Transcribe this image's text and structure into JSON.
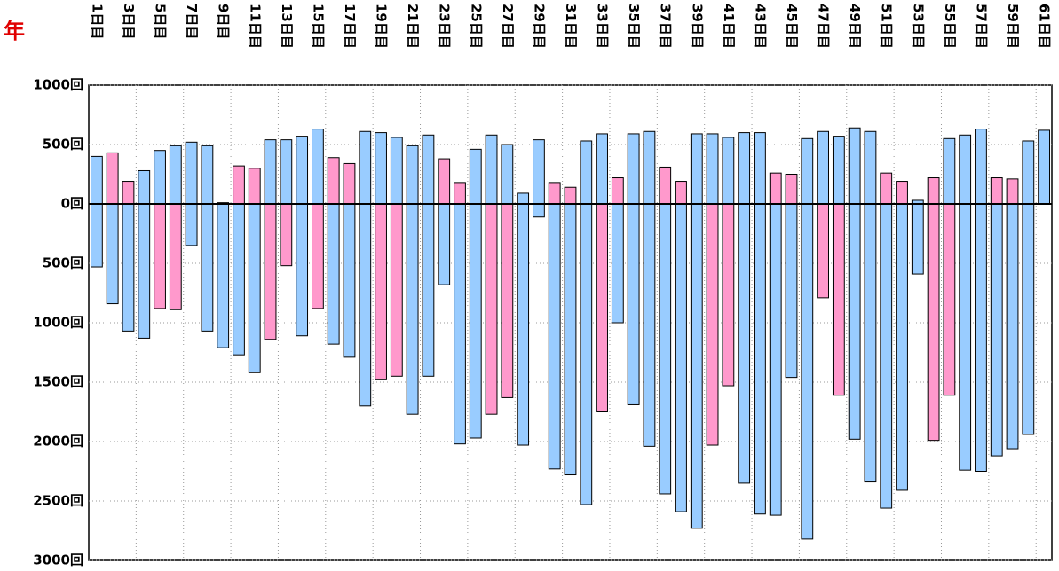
{
  "chart_data": {
    "type": "floating-bar",
    "annotation": "年",
    "categories": [
      "1日目",
      null,
      "3日目",
      null,
      "5日目",
      null,
      "7日目",
      null,
      "9日目",
      null,
      "11日目",
      null,
      "13日目",
      null,
      "15日目",
      null,
      "17日目",
      null,
      "19日目",
      null,
      "21日目",
      null,
      "23日目",
      null,
      "25日目",
      null,
      "27日目",
      null,
      "29日目",
      null,
      "31日目",
      null,
      "33日目",
      null,
      "35日目",
      null,
      "37日目",
      null,
      "39日目",
      null,
      "41日目",
      null,
      "43日目",
      null,
      "45日目",
      null,
      "47日目",
      null,
      "49日目",
      null,
      "51日目",
      null,
      "53日目",
      null,
      "55日目",
      null,
      "57日目",
      null,
      "59日目",
      null,
      "61日目"
    ],
    "highs": [
      400,
      430,
      190,
      280,
      450,
      490,
      520,
      490,
      10,
      320,
      300,
      540,
      540,
      570,
      630,
      390,
      340,
      610,
      600,
      560,
      490,
      580,
      380,
      180,
      460,
      580,
      500,
      90,
      540,
      180,
      140,
      530,
      590,
      220,
      590,
      610,
      310,
      190,
      590,
      590,
      560,
      600,
      600,
      260,
      250,
      550,
      610,
      570,
      640,
      610,
      260,
      190,
      30,
      220,
      550,
      580,
      630,
      220,
      210,
      530,
      620
    ],
    "high_colors": [
      "#99ccff",
      "#ff99cc",
      "#ff99cc",
      "#99ccff",
      "#99ccff",
      "#99ccff",
      "#99ccff",
      "#99ccff",
      "#99ccff",
      "#ff99cc",
      "#ff99cc",
      "#99ccff",
      "#99ccff",
      "#99ccff",
      "#99ccff",
      "#ff99cc",
      "#ff99cc",
      "#99ccff",
      "#99ccff",
      "#99ccff",
      "#99ccff",
      "#99ccff",
      "#ff99cc",
      "#ff99cc",
      "#99ccff",
      "#99ccff",
      "#99ccff",
      "#99ccff",
      "#99ccff",
      "#ff99cc",
      "#ff99cc",
      "#99ccff",
      "#99ccff",
      "#ff99cc",
      "#99ccff",
      "#99ccff",
      "#ff99cc",
      "#ff99cc",
      "#99ccff",
      "#99ccff",
      "#99ccff",
      "#99ccff",
      "#99ccff",
      "#ff99cc",
      "#ff99cc",
      "#99ccff",
      "#99ccff",
      "#99ccff",
      "#99ccff",
      "#99ccff",
      "#ff99cc",
      "#ff99cc",
      "#99ccff",
      "#ff99cc",
      "#99ccff",
      "#99ccff",
      "#99ccff",
      "#ff99cc",
      "#ff99cc",
      "#99ccff",
      "#99ccff"
    ],
    "lows": [
      -530,
      -840,
      -1070,
      -1130,
      -880,
      -890,
      -350,
      -1070,
      -1210,
      -1270,
      -1420,
      -1140,
      -520,
      -1110,
      -880,
      -1180,
      -1290,
      -1700,
      -1480,
      -1450,
      -1770,
      -1450,
      -680,
      -2020,
      -1970,
      -1770,
      -1630,
      -2030,
      -110,
      -2230,
      -2280,
      -2530,
      -1750,
      -1000,
      -1690,
      -2040,
      -2440,
      -2590,
      -2730,
      -2030,
      -1530,
      -2350,
      -2610,
      -2620,
      -1460,
      -2820,
      -790,
      -1610,
      -1980,
      -2340,
      -2560,
      -2410,
      -590,
      -1990,
      -1610,
      -2240,
      -2250,
      -2120,
      -2060,
      -1940,
      0
    ],
    "low_colors": [
      "#99ccff",
      "#99ccff",
      "#99ccff",
      "#99ccff",
      "#ff99cc",
      "#ff99cc",
      "#99ccff",
      "#99ccff",
      "#99ccff",
      "#99ccff",
      "#99ccff",
      "#ff99cc",
      "#ff99cc",
      "#99ccff",
      "#ff99cc",
      "#99ccff",
      "#99ccff",
      "#99ccff",
      "#ff99cc",
      "#ff99cc",
      "#99ccff",
      "#99ccff",
      "#99ccff",
      "#99ccff",
      "#99ccff",
      "#ff99cc",
      "#ff99cc",
      "#99ccff",
      "#99ccff",
      "#99ccff",
      "#99ccff",
      "#99ccff",
      "#ff99cc",
      "#99ccff",
      "#99ccff",
      "#99ccff",
      "#99ccff",
      "#99ccff",
      "#99ccff",
      "#ff99cc",
      "#ff99cc",
      "#99ccff",
      "#99ccff",
      "#99ccff",
      "#99ccff",
      "#99ccff",
      "#ff99cc",
      "#ff99cc",
      "#99ccff",
      "#99ccff",
      "#99ccff",
      "#99ccff",
      "#99ccff",
      "#ff99cc",
      "#ff99cc",
      "#99ccff",
      "#99ccff",
      "#99ccff",
      "#99ccff",
      "#99ccff",
      "#99ccff"
    ],
    "ylim": [
      -3000,
      1000
    ],
    "yticks": [
      {
        "value": 1000,
        "label": "1000回"
      },
      {
        "value": 500,
        "label": "500回"
      },
      {
        "value": 0,
        "label": "0回"
      },
      {
        "value": -500,
        "label": "500回"
      },
      {
        "value": -1000,
        "label": "1000回"
      },
      {
        "value": -1500,
        "label": "1500回"
      },
      {
        "value": -2000,
        "label": "2000回"
      },
      {
        "value": -2500,
        "label": "2500回"
      },
      {
        "value": -3000,
        "label": "3000回"
      }
    ],
    "grid": true
  }
}
